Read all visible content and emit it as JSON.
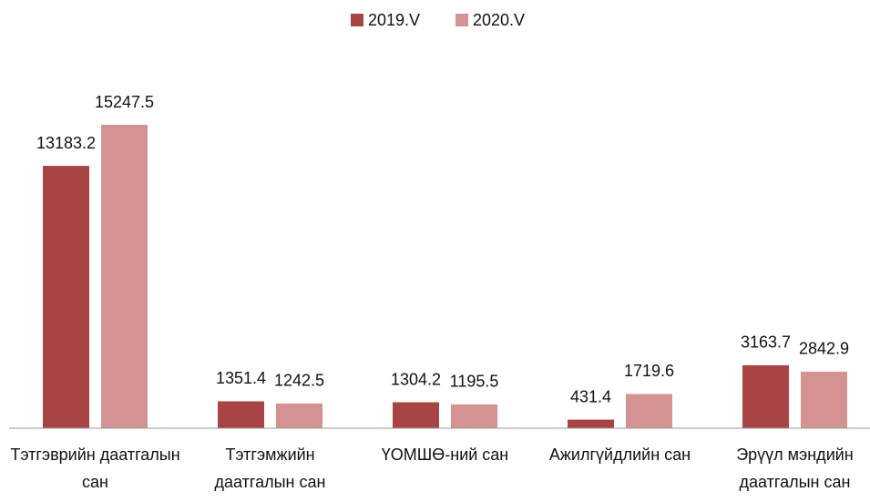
{
  "chart_data": {
    "type": "bar",
    "categories": [
      "Тэтгэврийн даатгалын сан",
      "Тэтгэмжийн даатгалын сан",
      "ҮОМШӨ-ний сан",
      "Ажилгүйдлийн сан",
      "Эрүүл мэндийн даатгалын сан"
    ],
    "series": [
      {
        "name": "2019.V",
        "color": "#a84444",
        "values": [
          13183.2,
          1351.4,
          1304.2,
          431.4,
          3163.7
        ]
      },
      {
        "name": "2020.V",
        "color": "#d49292",
        "values": [
          15247.5,
          1242.5,
          1195.5,
          1719.6,
          2842.9
        ]
      }
    ],
    "legend": "top"
  }
}
